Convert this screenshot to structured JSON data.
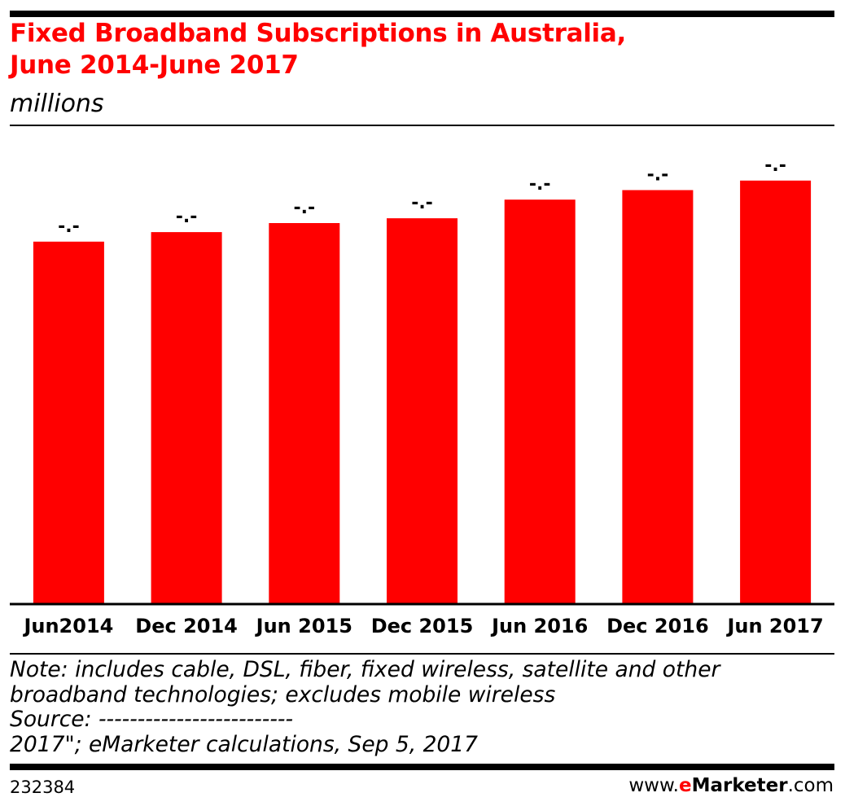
{
  "header": {
    "title_line1": "Fixed Broadband Subscriptions in Australia,",
    "title_line2": "June 2014-June 2017",
    "subtitle": "millions"
  },
  "chart_data": {
    "type": "bar",
    "categories": [
      "Jun2014",
      "Dec 2014",
      "Jun 2015",
      "Dec 2015",
      "Jun 2016",
      "Dec 2016",
      "Jun 2017"
    ],
    "values": [
      7.58,
      7.78,
      7.97,
      8.07,
      8.46,
      8.66,
      8.86
    ],
    "data_labels": [
      "-.-",
      "-.-",
      "-.-",
      "-.-",
      "-.-",
      "-.-",
      "-.-"
    ],
    "ylim": [
      0,
      10
    ],
    "bar_color": "#ff0000",
    "grid": false,
    "legend": "none"
  },
  "footer": {
    "note_line1": "Note: includes cable, DSL, fiber, fixed wireless, satellite and other",
    "note_line2": "broadband technologies; excludes mobile wireless",
    "source_line1": "Source: -------------------------",
    "source_line2": "2017\"; eMarketer calculations, Sep 5, 2017",
    "chart_id": "232384",
    "brand_prefix": "www.",
    "brand_e": "e",
    "brand_name": "Marketer",
    "brand_suffix": ".com"
  },
  "colors": {
    "accent": "#ff0000",
    "text": "#000000"
  }
}
